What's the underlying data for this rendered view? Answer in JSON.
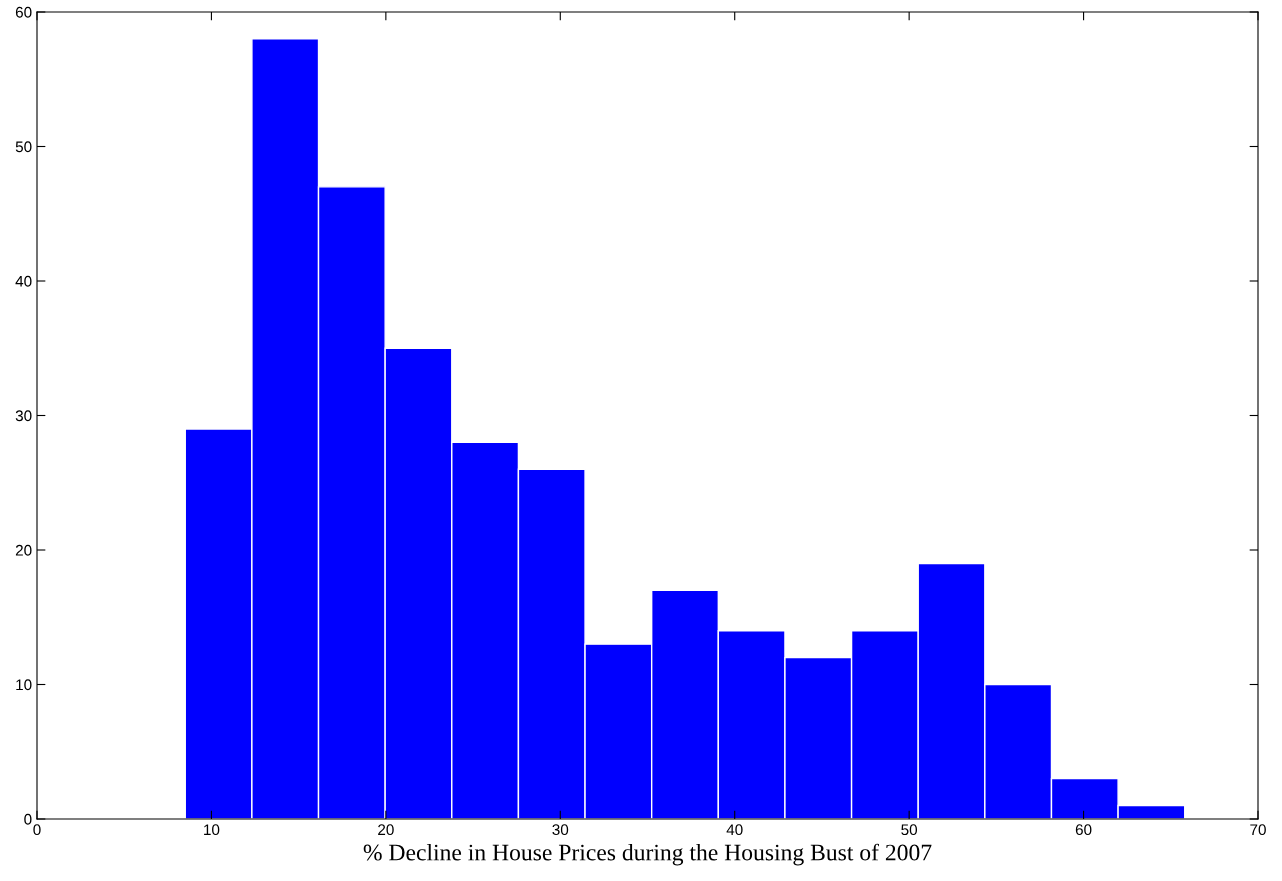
{
  "chart_data": {
    "type": "histogram",
    "xlabel": "% Decline in House Prices during the Housing Bust of 2007",
    "bins": [
      8.5,
      12.32,
      16.14,
      19.96,
      23.78,
      27.6,
      31.42,
      35.24,
      39.06,
      42.88,
      46.7,
      50.52,
      54.34,
      58.16,
      61.98,
      65.8
    ],
    "values": [
      29,
      58,
      47,
      35,
      28,
      26,
      13,
      17,
      14,
      12,
      14,
      19,
      10,
      3,
      1
    ],
    "color": "#0000ff",
    "xlim": [
      0,
      70
    ],
    "xticks": [
      0,
      10,
      20,
      30,
      40,
      50,
      60,
      70
    ],
    "ylim": [
      0,
      60
    ],
    "yticks": [
      0,
      10,
      20,
      30,
      40,
      50,
      60
    ],
    "grid": false
  }
}
